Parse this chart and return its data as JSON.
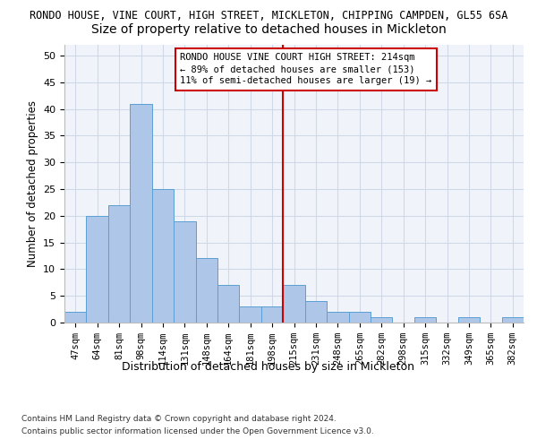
{
  "title_main": "RONDO HOUSE, VINE COURT, HIGH STREET, MICKLETON, CHIPPING CAMPDEN, GL55 6SA",
  "title_sub": "Size of property relative to detached houses in Mickleton",
  "xlabel": "Distribution of detached houses by size in Mickleton",
  "ylabel": "Number of detached properties",
  "categories": [
    "47sqm",
    "64sqm",
    "81sqm",
    "98sqm",
    "114sqm",
    "131sqm",
    "148sqm",
    "164sqm",
    "181sqm",
    "198sqm",
    "215sqm",
    "231sqm",
    "248sqm",
    "265sqm",
    "282sqm",
    "298sqm",
    "315sqm",
    "332sqm",
    "349sqm",
    "365sqm",
    "382sqm"
  ],
  "values": [
    2,
    20,
    22,
    41,
    25,
    19,
    12,
    7,
    3,
    3,
    7,
    4,
    2,
    2,
    1,
    0,
    1,
    0,
    1,
    0,
    1
  ],
  "bar_color": "#aec6e8",
  "bar_edge_color": "#5a9fd4",
  "vline_x_index": 10,
  "vline_color": "#cc0000",
  "annotation_text": "RONDO HOUSE VINE COURT HIGH STREET: 214sqm\n← 89% of detached houses are smaller (153)\n11% of semi-detached houses are larger (19) →",
  "annotation_box_color": "#cc0000",
  "ylim": [
    0,
    52
  ],
  "yticks": [
    0,
    5,
    10,
    15,
    20,
    25,
    30,
    35,
    40,
    45,
    50
  ],
  "grid_color": "#d0d8e8",
  "background_color": "#f0f4fa",
  "footer_line1": "Contains HM Land Registry data © Crown copyright and database right 2024.",
  "footer_line2": "Contains public sector information licensed under the Open Government Licence v3.0.",
  "title_fontsize": 8.5,
  "subtitle_fontsize": 10,
  "xlabel_fontsize": 9,
  "ylabel_fontsize": 8.5,
  "annotation_fontsize": 7.5,
  "tick_fontsize": 7.5,
  "footer_fontsize": 6.5
}
